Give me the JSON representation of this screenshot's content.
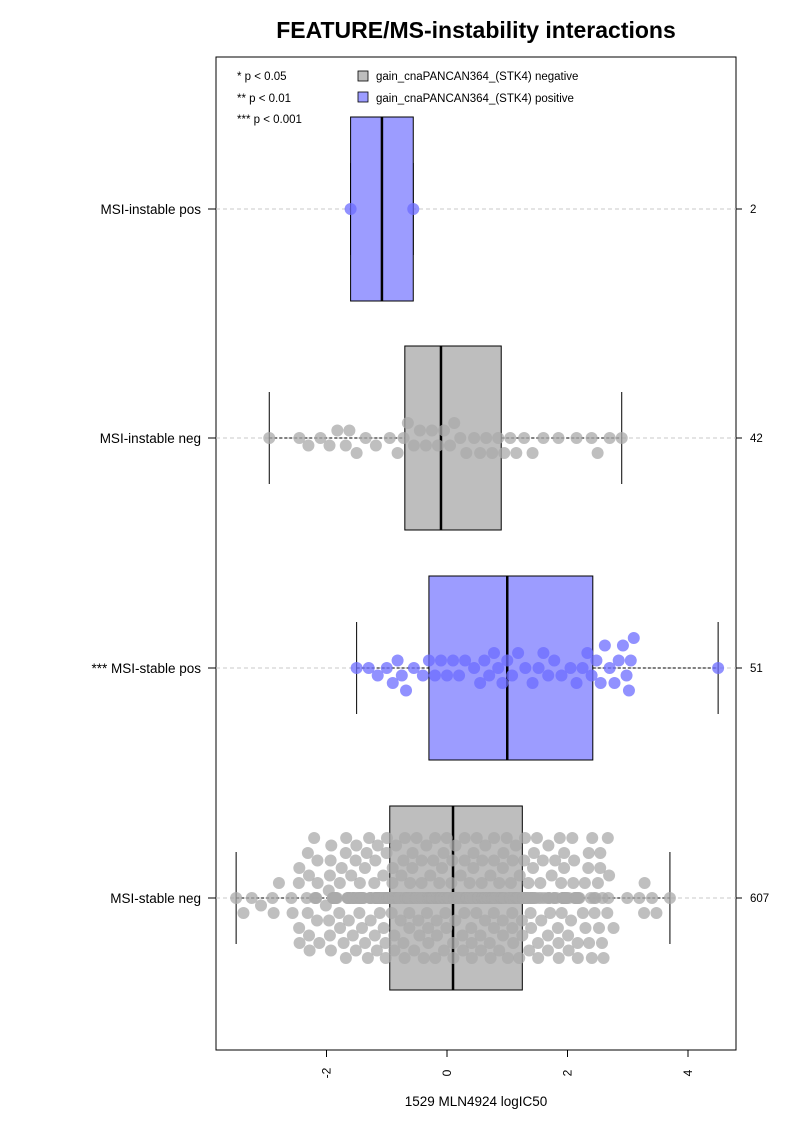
{
  "chart_data": {
    "type": "boxplot",
    "title": "FEATURE/MS-instability interactions",
    "xlabel": "1529 MLN4924 logIC50",
    "xlim": [
      -3.65,
      4.6
    ],
    "x_ticks": [
      "-2",
      "0",
      "2",
      "4"
    ],
    "significance_legend": [
      "* p < 0.05",
      "** p < 0.01",
      "*** p < 0.001"
    ],
    "legend": {
      "placement": "top",
      "entries": [
        {
          "label": "gain_cnaPANCAN364_(STK4) negative",
          "color": "#bebebe"
        },
        {
          "label": "gain_cnaPANCAN364_(STK4) positive",
          "color": "#9c9cff"
        }
      ]
    },
    "colors": {
      "negative": "#bebebe",
      "positive": "#9c9cff",
      "negative_points": "#a9a9a9",
      "positive_points": "#6c6cff"
    },
    "groups": [
      {
        "label": "MSI-instable pos",
        "count": "2",
        "status": "positive",
        "q1": -1.6,
        "median": -1.08,
        "q3": -0.56,
        "whisker_low": -1.6,
        "whisker_high": -0.56,
        "points": [
          -1.6,
          -0.56
        ]
      },
      {
        "label": "MSI-instable neg",
        "count": "42",
        "status": "negative",
        "q1": -0.7,
        "median": -0.1,
        "q3": 0.9,
        "whisker_low": -2.95,
        "whisker_high": 2.9,
        "points": [
          -2.95,
          -2.45,
          -2.3,
          -2.1,
          -1.95,
          -1.82,
          -1.68,
          -1.62,
          -1.5,
          -1.35,
          -1.18,
          -0.95,
          -0.82,
          -0.72,
          -0.65,
          -0.55,
          -0.45,
          -0.35,
          -0.25,
          -0.15,
          -0.05,
          0.05,
          0.12,
          0.22,
          0.32,
          0.45,
          0.55,
          0.65,
          0.75,
          0.85,
          0.95,
          1.05,
          1.15,
          1.28,
          1.42,
          1.6,
          1.85,
          2.15,
          2.4,
          2.5,
          2.7,
          2.9
        ]
      },
      {
        "label": "*** MSI-stable pos",
        "count": "51",
        "status": "positive",
        "q1": -0.3,
        "median": 1.0,
        "q3": 2.42,
        "whisker_low": -1.5,
        "whisker_high": 4.5,
        "points": [
          -1.5,
          -1.3,
          -1.15,
          -1.0,
          -0.9,
          -0.82,
          -0.75,
          -0.68,
          -0.55,
          -0.4,
          -0.3,
          -0.2,
          -0.1,
          0.0,
          0.1,
          0.2,
          0.3,
          0.45,
          0.55,
          0.62,
          0.7,
          0.78,
          0.85,
          0.92,
          1.0,
          1.08,
          1.18,
          1.3,
          1.42,
          1.52,
          1.6,
          1.68,
          1.78,
          1.9,
          2.05,
          2.15,
          2.25,
          2.33,
          2.4,
          2.48,
          2.55,
          2.62,
          2.7,
          2.78,
          2.85,
          2.92,
          2.98,
          3.02,
          3.05,
          3.1,
          4.5
        ]
      },
      {
        "label": "MSI-stable neg",
        "count": "607",
        "status": "negative",
        "q1": -0.95,
        "median": 0.1,
        "q3": 1.25,
        "whisker_low": -3.5,
        "whisker_high": 3.7,
        "points": []
      }
    ]
  }
}
